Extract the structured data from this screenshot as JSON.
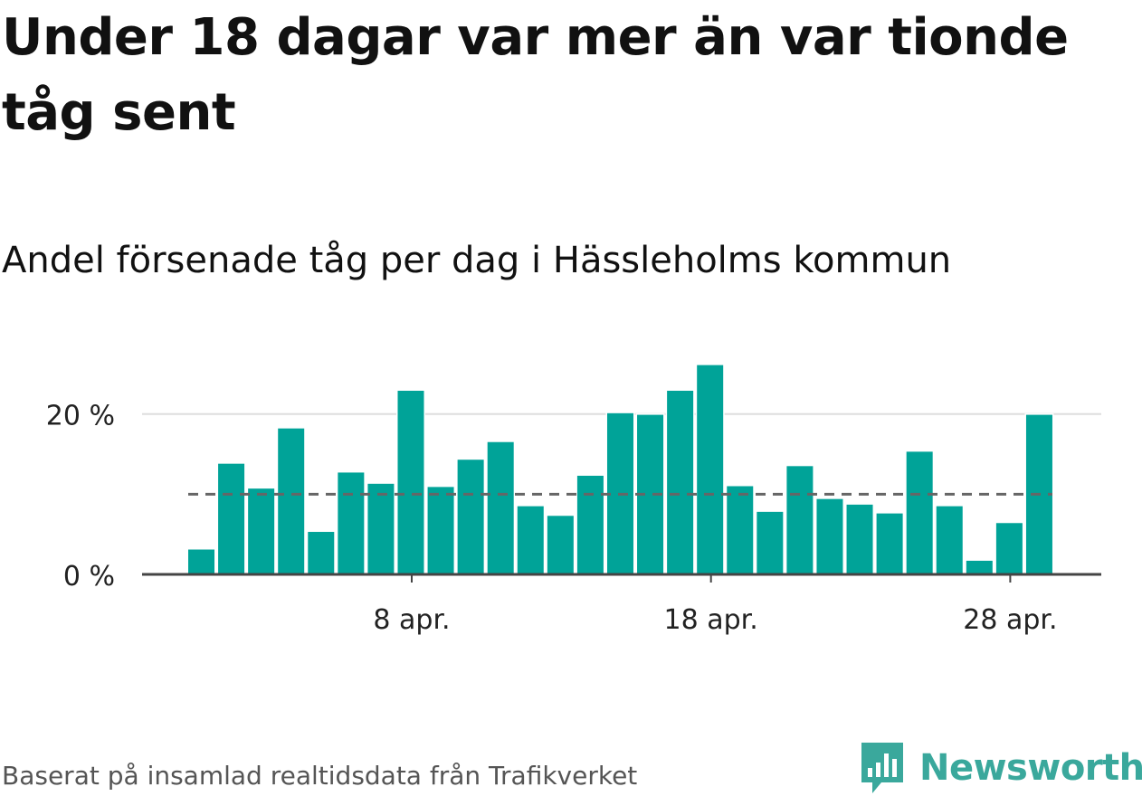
{
  "title": "Under 18 dagar var mer än var tionde tåg sent",
  "subtitle": "Andel försenade tåg per dag i Hässleholms kommun",
  "source": "Baserat på insamlad realtidsdata från Trafikverket",
  "brand": {
    "name": "Newsworthy",
    "icon": "newsworthy-logo-icon"
  },
  "colors": {
    "bar": "#00a398",
    "reference_line": "#666666",
    "grid": "#dddddd",
    "axis": "#444444",
    "brand": "#3aa89c"
  },
  "chart_data": {
    "type": "bar",
    "x": [
      "1 apr.",
      "2 apr.",
      "3 apr.",
      "4 apr.",
      "5 apr.",
      "6 apr.",
      "7 apr.",
      "8 apr.",
      "9 apr.",
      "10 apr.",
      "11 apr.",
      "12 apr.",
      "13 apr.",
      "14 apr.",
      "15 apr.",
      "16 apr.",
      "17 apr.",
      "18 apr.",
      "19 apr.",
      "20 apr.",
      "21 apr.",
      "22 apr.",
      "23 apr.",
      "24 apr.",
      "25 apr.",
      "26 apr.",
      "27 apr.",
      "28 apr.",
      "29 apr."
    ],
    "values": [
      3.1,
      13.8,
      10.7,
      18.2,
      5.3,
      12.7,
      11.3,
      22.9,
      10.9,
      14.3,
      16.5,
      8.5,
      7.3,
      12.3,
      20.1,
      19.9,
      22.9,
      26.1,
      11.0,
      7.8,
      13.5,
      9.4,
      8.7,
      7.6,
      15.3,
      8.5,
      1.7,
      6.4,
      19.9
    ],
    "reference_line": {
      "value": 10,
      "style": "dashed"
    },
    "yticks": [
      0,
      20
    ],
    "ytick_labels": [
      "0 %",
      "20 %"
    ],
    "xtick_labels": [
      {
        "date": "8 apr.",
        "label": "8 apr."
      },
      {
        "date": "18 apr.",
        "label": "18 apr."
      },
      {
        "date": "28 apr.",
        "label": "28 apr."
      }
    ],
    "ylim": [
      0,
      28
    ],
    "grid": true,
    "legend": "none"
  }
}
